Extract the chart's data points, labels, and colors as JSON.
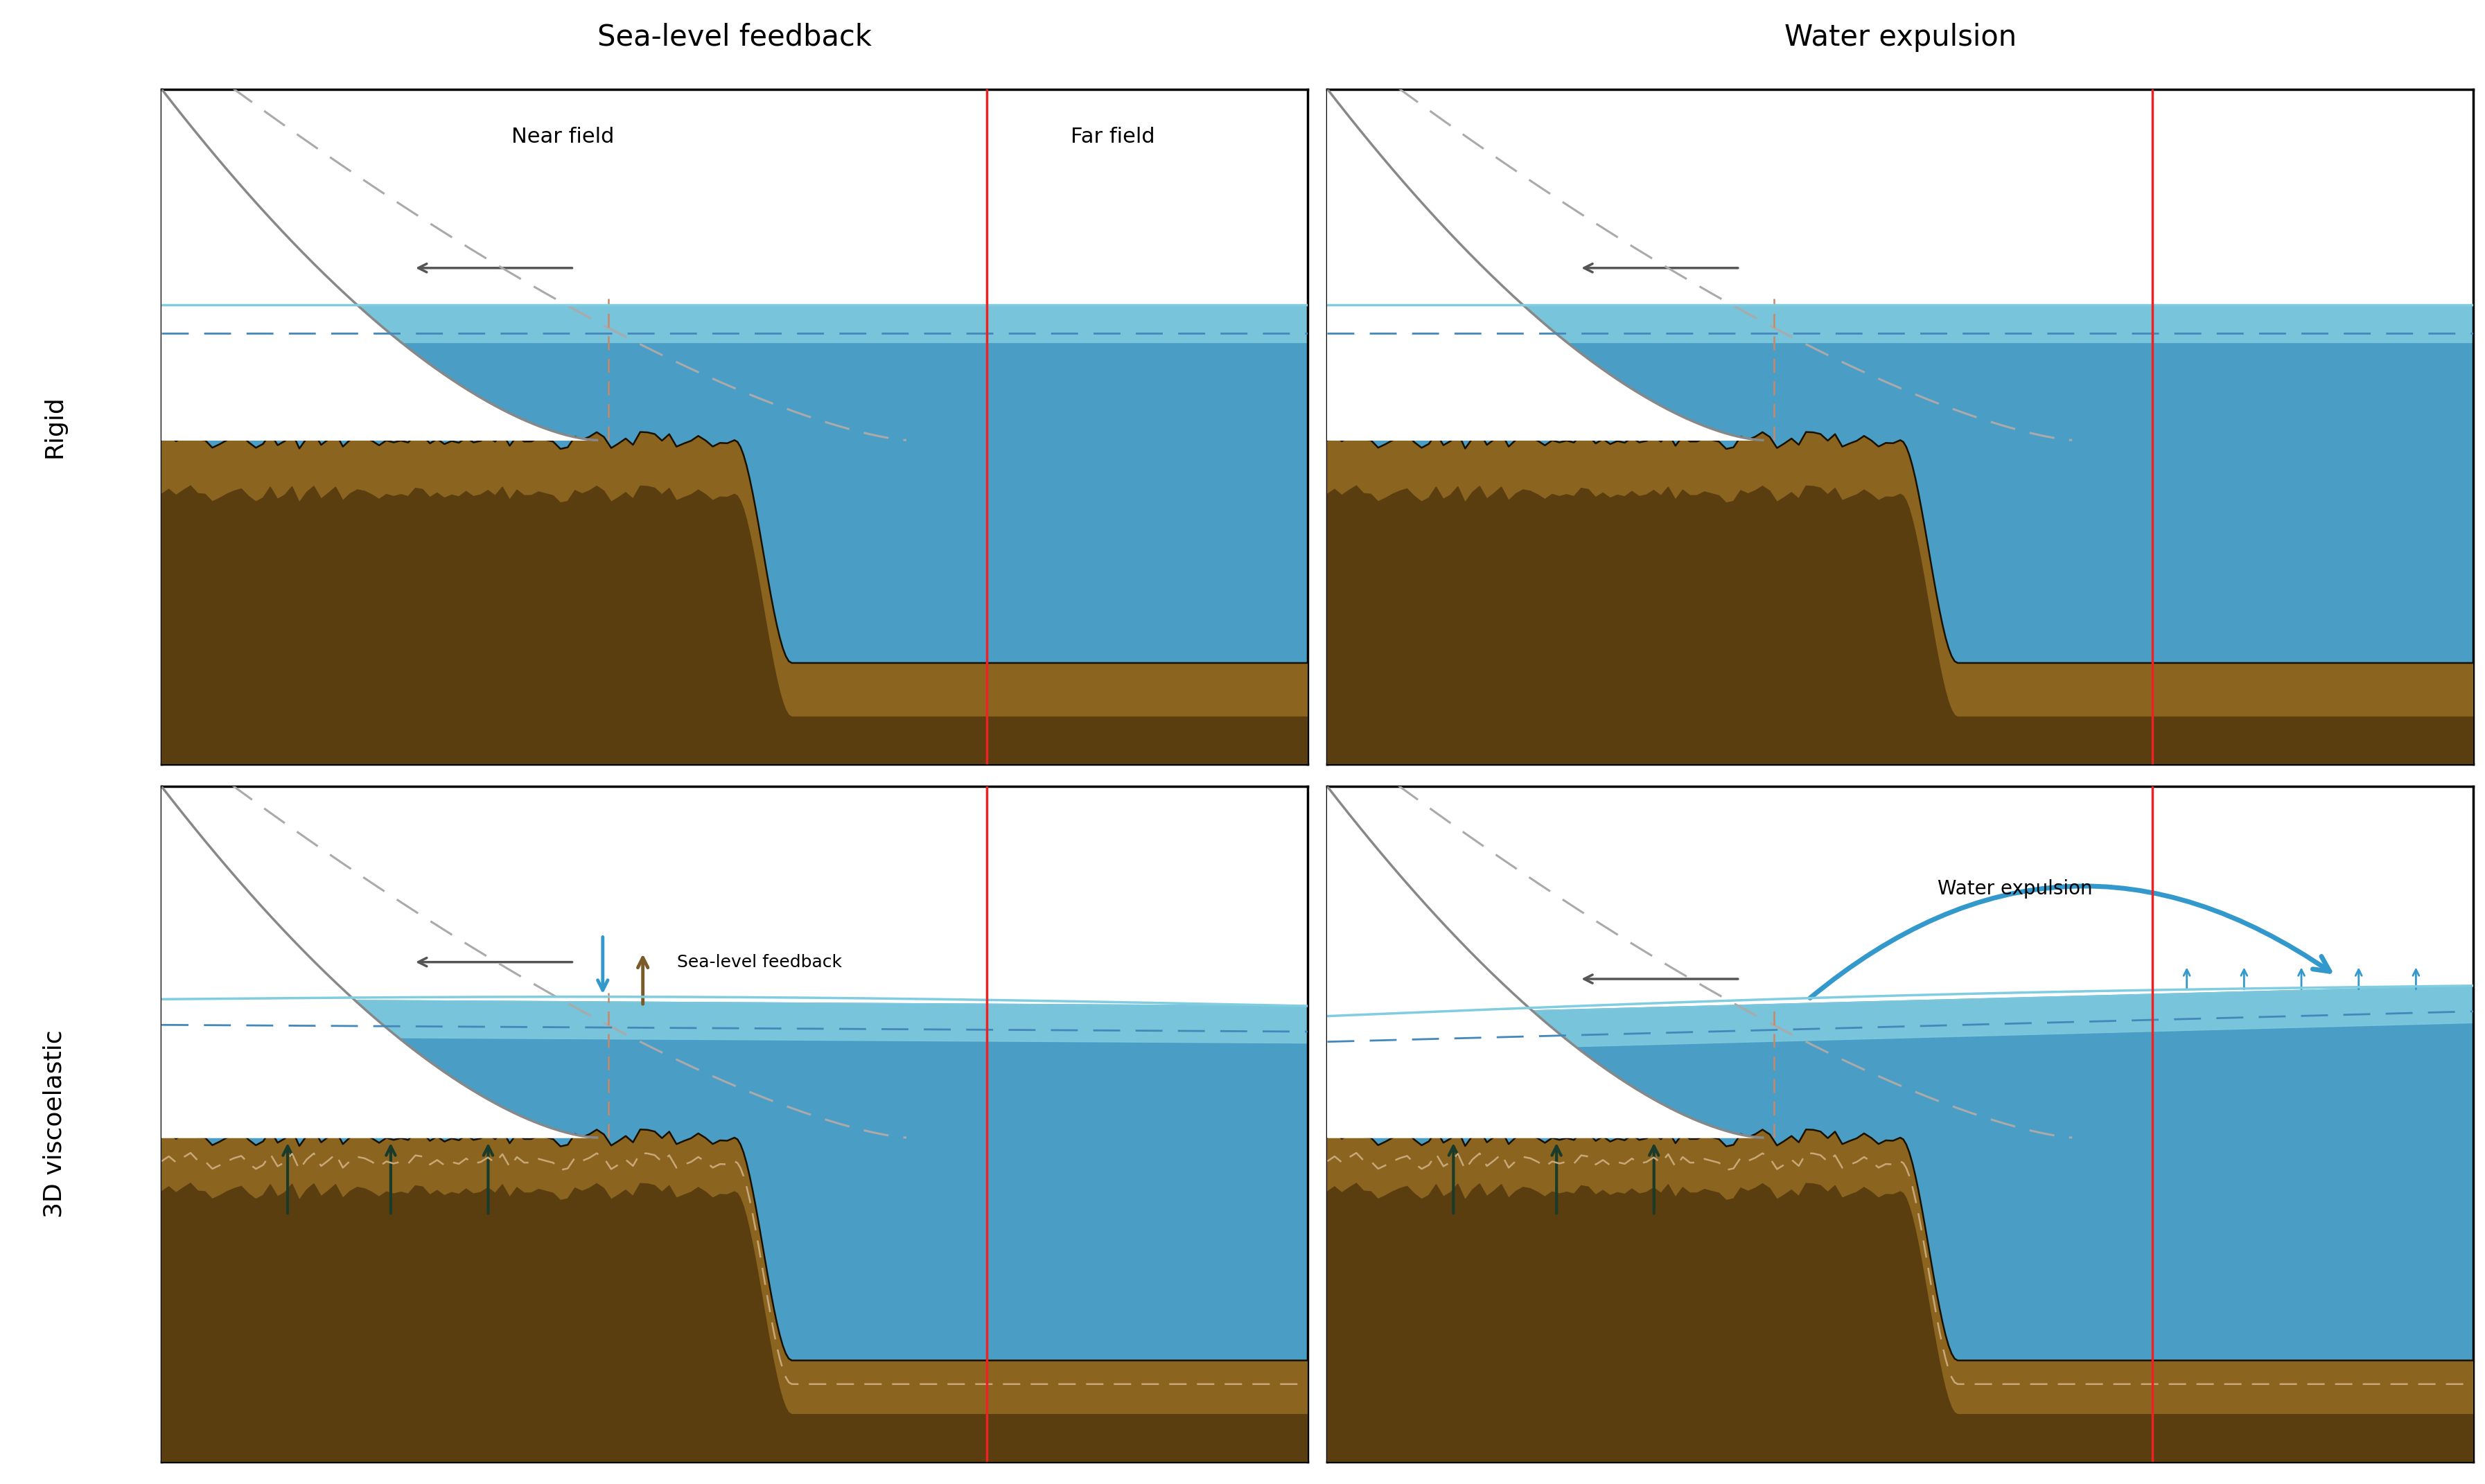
{
  "title_left": "Sea-level feedback",
  "title_right": "Water expulsion",
  "label_rigid": "Rigid",
  "label_3d": "3D viscoelastic",
  "near_field": "Near field",
  "far_field": "Far field",
  "sea_level_feedback_label": "Sea-level feedback",
  "water_expulsion_label": "Water expulsion",
  "bg_color": "#ffffff",
  "water_light": "#80cce0",
  "water_mid": "#4a9dc5",
  "water_dark": "#1a6090",
  "ground_light": "#8B6520",
  "ground_dark": "#5a3e10",
  "ground_outline": "#1a1000",
  "ice_color": "#ffffff",
  "ice_outline": "#888888",
  "dashed_gray": "#aaaaaa",
  "dashed_blue": "#4488bb",
  "red_line": "#ee2222",
  "arrow_gray": "#555555",
  "arrow_dark_teal": "#1a3a2a",
  "arrow_blue": "#3399cc",
  "arrow_brown": "#7a5c28",
  "wavy_tan": "#c8a878"
}
